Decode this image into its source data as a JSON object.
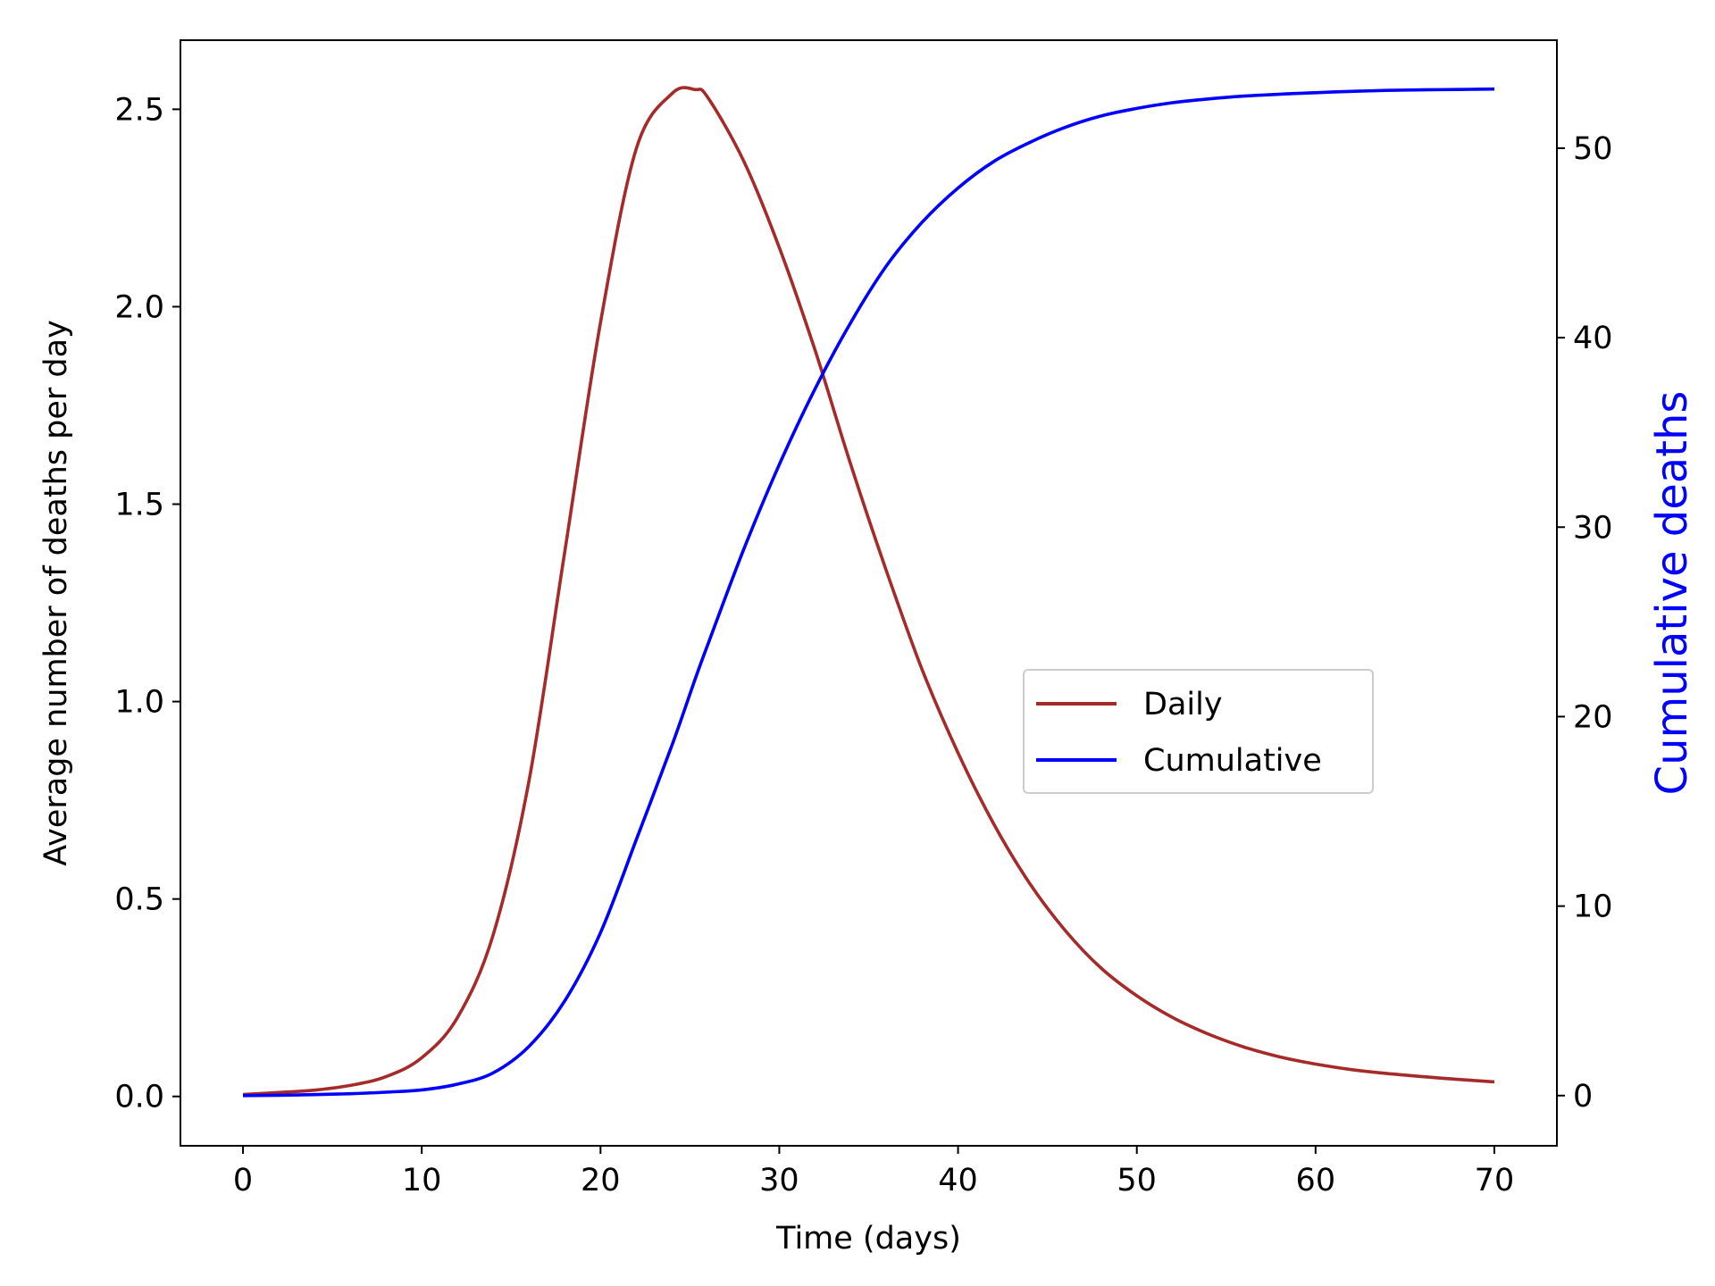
{
  "chart_data": {
    "type": "line",
    "title": "",
    "xlabel": "Time (days)",
    "ylabel": "Average number of deaths per day",
    "y2label": "Cumulative deaths",
    "xlim": [
      -3.5,
      73.5
    ],
    "ylim": [
      -0.125,
      2.675
    ],
    "y2lim": [
      -2.65,
      55.7
    ],
    "xticks": [
      0,
      10,
      20,
      30,
      40,
      50,
      60,
      70
    ],
    "yticks": [
      0.0,
      0.5,
      1.0,
      1.5,
      2.0,
      2.5
    ],
    "y2ticks": [
      0,
      10,
      20,
      30,
      40,
      50
    ],
    "grid": false,
    "legend_position": "center-right",
    "colors": {
      "daily": "#a52a2a",
      "cumulative": "#0000ff",
      "y2label": "#0000ff"
    },
    "x": [
      0,
      2,
      4,
      6,
      8,
      10,
      12,
      14,
      16,
      18,
      20,
      22,
      24,
      25.3,
      26,
      28,
      30,
      32,
      34,
      36,
      38,
      40,
      42,
      44,
      46,
      48,
      50,
      52,
      54,
      56,
      58,
      60,
      62,
      64,
      66,
      68,
      70
    ],
    "series": [
      {
        "name": "Daily",
        "axis": "left",
        "values": [
          0.005,
          0.01,
          0.016,
          0.028,
          0.05,
          0.098,
          0.2,
          0.41,
          0.8,
          1.38,
          1.96,
          2.4,
          2.54,
          2.55,
          2.53,
          2.37,
          2.15,
          1.89,
          1.6,
          1.33,
          1.08,
          0.87,
          0.69,
          0.54,
          0.42,
          0.325,
          0.255,
          0.2,
          0.158,
          0.125,
          0.1,
          0.082,
          0.068,
          0.058,
          0.05,
          0.043,
          0.037
        ]
      },
      {
        "name": "Cumulative",
        "axis": "right",
        "values": [
          0,
          0.02,
          0.05,
          0.1,
          0.18,
          0.3,
          0.6,
          1.2,
          2.6,
          5.0,
          8.6,
          13.5,
          18.5,
          22.0,
          23.8,
          28.8,
          33.3,
          37.3,
          40.8,
          43.8,
          46.1,
          47.9,
          49.3,
          50.3,
          51.1,
          51.7,
          52.1,
          52.4,
          52.6,
          52.75,
          52.85,
          52.93,
          53.0,
          53.05,
          53.08,
          53.1,
          53.12
        ]
      }
    ]
  }
}
